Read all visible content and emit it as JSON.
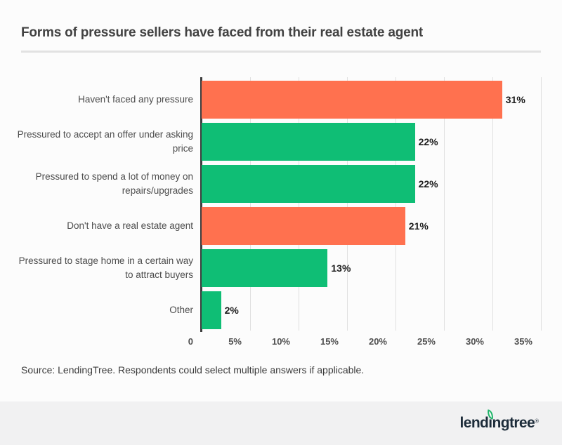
{
  "page": {
    "title": "Forms of pressure sellers have faced from their real estate agent",
    "source_note": "Source: LendingTree. Respondents could select multiple answers if applicable."
  },
  "footer": {
    "logo_text": "lendingtree",
    "logo_reg_mark": "®",
    "logo_color": "#1C2B39",
    "leaf_color": "#1EB468",
    "background": "#F1F1F2"
  },
  "chart_data": {
    "type": "bar",
    "orientation": "horizontal",
    "title": "Forms of pressure sellers have faced from their real estate agent",
    "categories": [
      "Haven't faced any pressure",
      "Pressured to accept an offer under asking price",
      "Pressured to spend a lot of money on repairs/upgrades",
      "Don't have a real estate agent",
      "Pressured to stage home in a certain way to attract buyers",
      "Other"
    ],
    "categories_wrapped": [
      [
        "Haven't faced any pressure"
      ],
      [
        "Pressured to accept an offer under asking",
        "price"
      ],
      [
        "Pressured to spend a lot of money on",
        "repairs/upgrades"
      ],
      [
        "Don't have a real estate agent"
      ],
      [
        "Pressured to stage home in a certain way",
        "to attract buyers"
      ],
      [
        "Other"
      ]
    ],
    "values": [
      31,
      22,
      22,
      21,
      13,
      2
    ],
    "value_labels": [
      "31%",
      "22%",
      "22%",
      "21%",
      "13%",
      "2%"
    ],
    "bar_colors": [
      "#FF714F",
      "#0FBE75",
      "#0FBE75",
      "#FF714F",
      "#0FBE75",
      "#0FBE75"
    ],
    "colors": {
      "orange": "#FF714F",
      "green": "#0FBE75",
      "axis": "#3D3D3D",
      "grid": "#E0E0E0",
      "value_label": "#1C1C1C",
      "category_label": "#4C4C4C"
    },
    "xlabel": "",
    "ylabel": "",
    "xlim": [
      0,
      35
    ],
    "x_tick_step": 5,
    "x_ticks": [
      "0",
      "5%",
      "10%",
      "15%",
      "20%",
      "25%",
      "30%",
      "35%"
    ],
    "grid": true,
    "legend": false
  }
}
